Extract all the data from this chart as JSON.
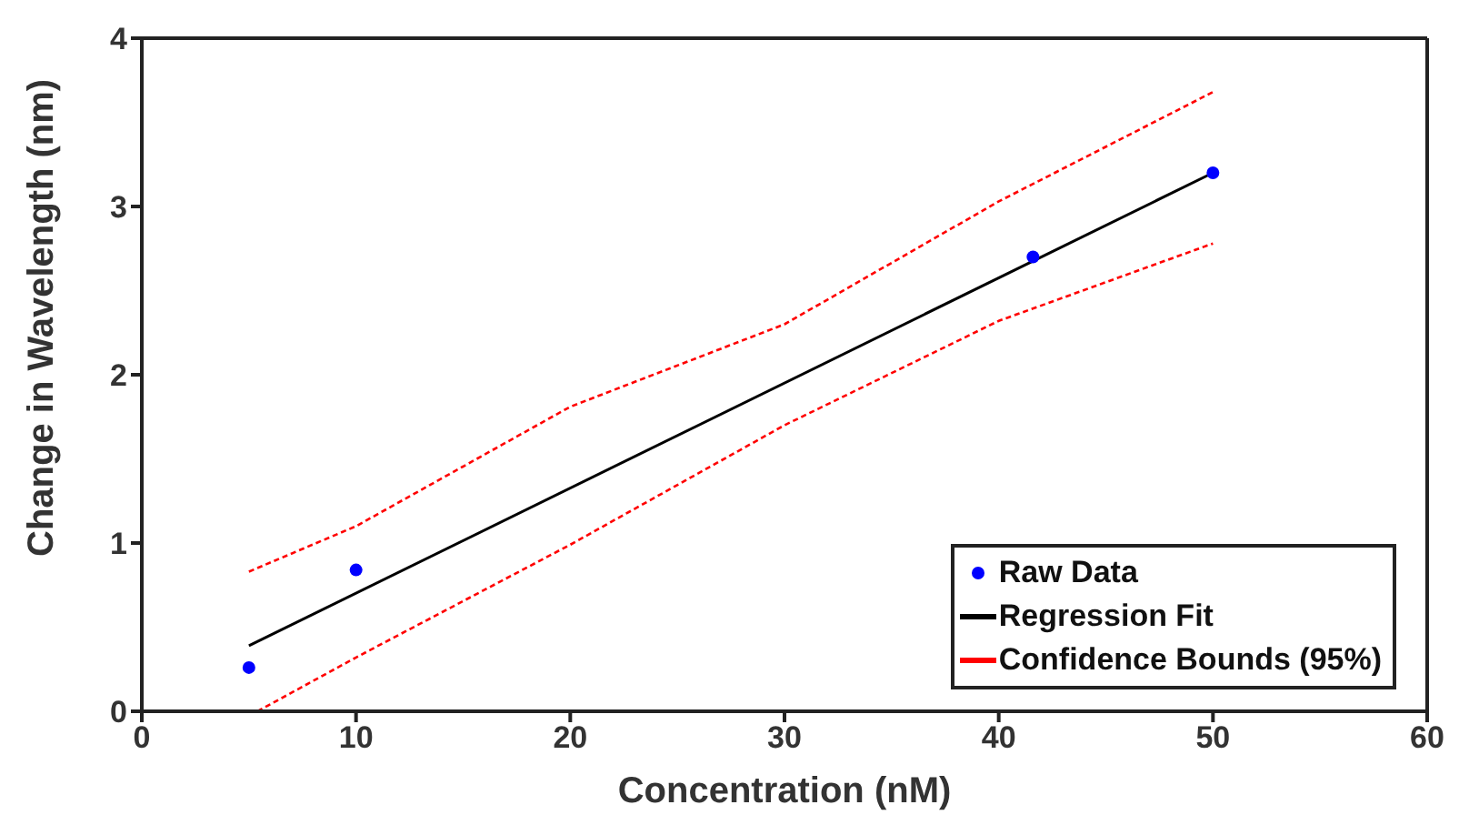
{
  "chart_data": {
    "type": "scatter",
    "xlabel": "Concentration (nM)",
    "ylabel": "Change in Wavelength (nm)",
    "xlim": [
      0,
      60
    ],
    "xticks": [
      0,
      10,
      20,
      30,
      40,
      50,
      60
    ],
    "ylim": [
      0,
      4
    ],
    "yticks": [
      0,
      1,
      2,
      3,
      4
    ],
    "grid": false,
    "legend": "bottom right",
    "series": [
      {
        "name": "Raw Data",
        "color": "#0000ff",
        "marker": "circle",
        "x": [
          5,
          10,
          41.6,
          50
        ],
        "values": [
          0.26,
          0.84,
          2.7,
          3.2
        ]
      },
      {
        "name": "Regression Fit",
        "type": "line",
        "color": "#000000",
        "line_style": "solid",
        "x": [
          5,
          50
        ],
        "values": [
          0.39,
          3.2
        ]
      },
      {
        "name": "Confidence Bounds (95%)",
        "type": "line",
        "color": "#ff0000",
        "line_style": "dashed",
        "x": [
          5,
          10,
          20,
          30,
          40,
          50
        ],
        "values": [
          0.83,
          1.1,
          1.81,
          2.3,
          3.03,
          3.68
        ]
      },
      {
        "type": "line",
        "color": "#ff0000",
        "line_style": "dashed",
        "x": [
          5.4,
          10,
          20,
          30,
          40,
          50
        ],
        "values": [
          0,
          0.32,
          0.99,
          1.7,
          2.32,
          2.78
        ]
      }
    ]
  }
}
